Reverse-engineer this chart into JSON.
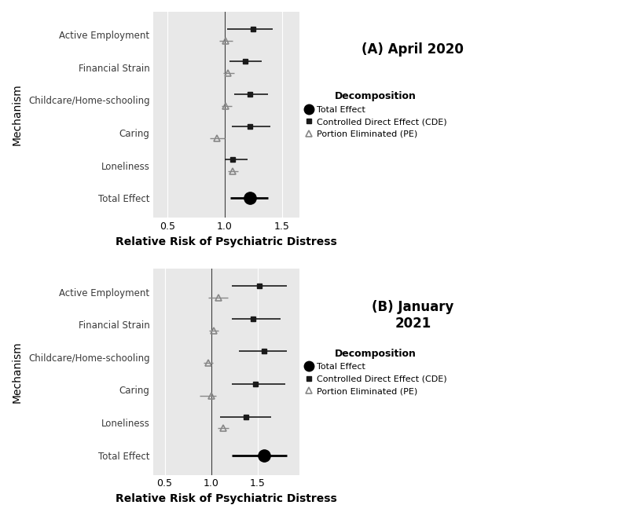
{
  "panel_A": {
    "title": "(A) April 2020",
    "mechanisms": [
      "Active Employment",
      "Financial Strain",
      "Childcare/Home-schooling",
      "Caring",
      "Loneliness",
      "Total Effect"
    ],
    "CDE": {
      "values": [
        1.25,
        1.18,
        1.22,
        1.22,
        1.07,
        null
      ],
      "ci_low": [
        1.02,
        1.04,
        1.08,
        1.06,
        1.0,
        null
      ],
      "ci_high": [
        1.42,
        1.32,
        1.38,
        1.4,
        1.2,
        null
      ]
    },
    "PE": {
      "values": [
        1.01,
        1.03,
        1.01,
        0.93,
        1.07,
        null
      ],
      "ci_low": [
        0.95,
        0.99,
        0.97,
        0.87,
        1.03,
        null
      ],
      "ci_high": [
        1.07,
        1.08,
        1.06,
        1.0,
        1.12,
        null
      ]
    },
    "TE": {
      "value": 1.22,
      "ci_low": 1.05,
      "ci_high": 1.38
    }
  },
  "panel_B": {
    "title": "(B) January\n2021",
    "mechanisms": [
      "Active Employment",
      "Financial Strain",
      "Childcare/Home-schooling",
      "Caring",
      "Loneliness",
      "Total Effect"
    ],
    "CDE": {
      "values": [
        1.52,
        1.45,
        1.57,
        1.48,
        1.38,
        null
      ],
      "ci_low": [
        1.22,
        1.22,
        1.3,
        1.22,
        1.1,
        null
      ],
      "ci_high": [
        1.82,
        1.75,
        1.82,
        1.8,
        1.65,
        null
      ]
    },
    "PE": {
      "values": [
        1.08,
        1.03,
        0.97,
        1.0,
        1.13,
        null
      ],
      "ci_low": [
        0.97,
        0.98,
        0.92,
        0.88,
        1.07,
        null
      ],
      "ci_high": [
        1.18,
        1.08,
        1.02,
        1.05,
        1.19,
        null
      ]
    },
    "TE": {
      "value": 1.57,
      "ci_low": 1.22,
      "ci_high": 1.82
    }
  },
  "xlabel": "Relative Risk of Psychiatric Distress",
  "ylabel": "Mechanism",
  "xlim_A": [
    0.38,
    1.65
  ],
  "xlim_B": [
    0.38,
    1.95
  ],
  "xticks_A": [
    0.5,
    1.0,
    1.5
  ],
  "xticks_B": [
    0.5,
    1.0,
    1.5
  ],
  "bg_color": "#e8e8e8",
  "grid_color": "#ffffff",
  "ref_line_color": "#3d3d3d",
  "cde_line_color": "#1a1a1a",
  "pe_line_color": "#888888",
  "te_color": "#000000",
  "legend_title": "Decomposition",
  "legend_items": [
    "Total Effect",
    "Controlled Direct Effect (CDE)",
    "Portion Eliminated (PE)"
  ]
}
